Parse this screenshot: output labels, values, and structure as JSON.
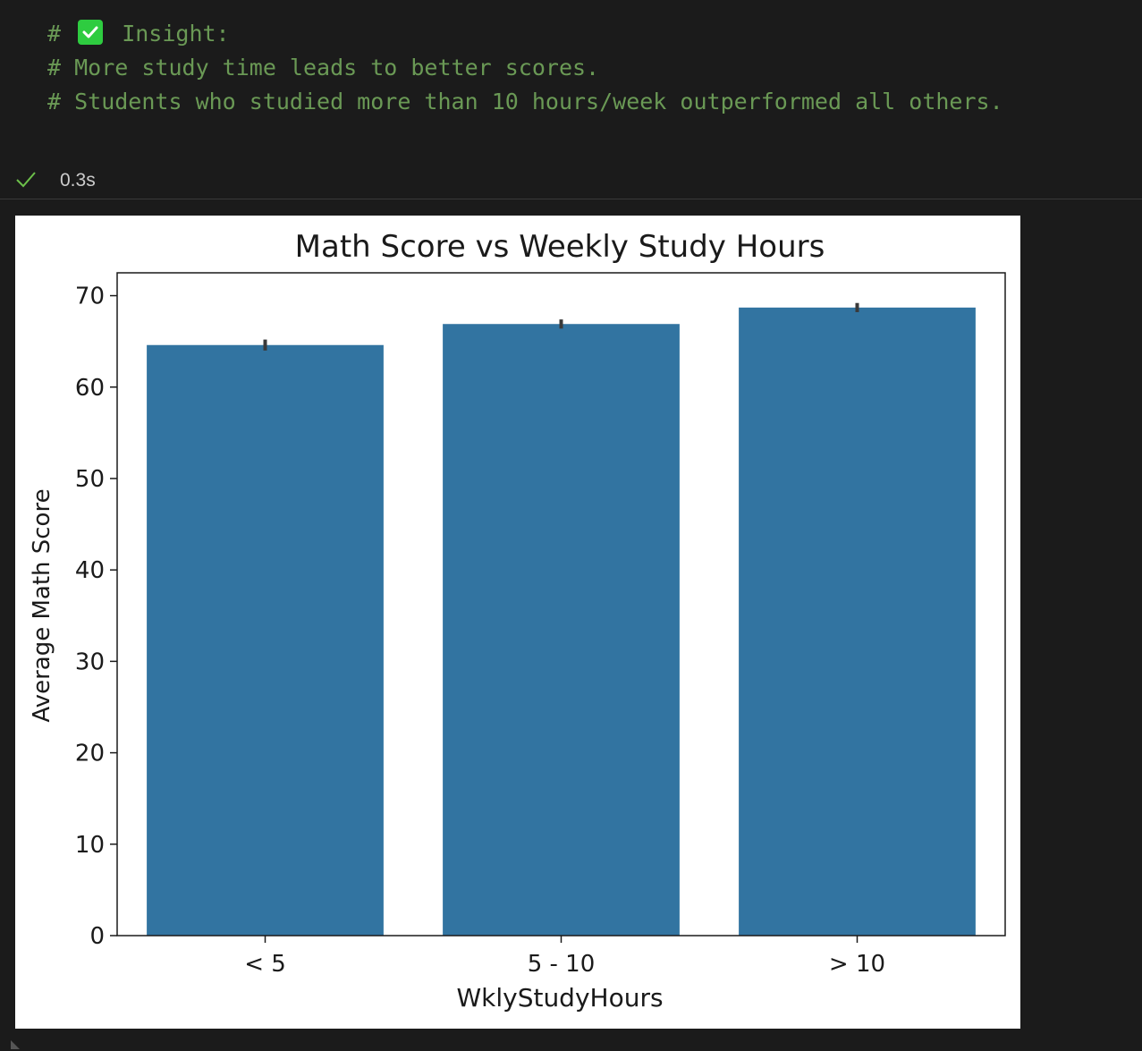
{
  "cell": {
    "lines": [
      {
        "hash": "#",
        "emoji": "check-mark-button",
        "text": "Insight:"
      },
      {
        "text": "# More study time leads to better scores."
      },
      {
        "text": "# Students who studied more than 10 hours/week outperformed all others."
      }
    ],
    "comment_color": "#6a9955"
  },
  "status": {
    "icon": "checkmark-icon",
    "time": "0.3s",
    "color": "#6cc04a"
  },
  "chart_data": {
    "type": "bar",
    "title": "Math Score vs Weekly Study Hours",
    "xlabel": "WklyStudyHours",
    "ylabel": "Average Math Score",
    "categories": [
      "< 5",
      "5 - 10",
      "> 10"
    ],
    "values": [
      64.6,
      66.9,
      68.7
    ],
    "error_bars": [
      [
        64.0,
        65.2
      ],
      [
        66.4,
        67.4
      ],
      [
        68.2,
        69.2
      ]
    ],
    "ylim": [
      0,
      72.5
    ],
    "yticks": [
      0,
      10,
      20,
      30,
      40,
      50,
      60,
      70
    ],
    "bar_color": "#3274a1",
    "errorbar_color": "#3a3a3a",
    "grid": false,
    "legend": "none"
  }
}
